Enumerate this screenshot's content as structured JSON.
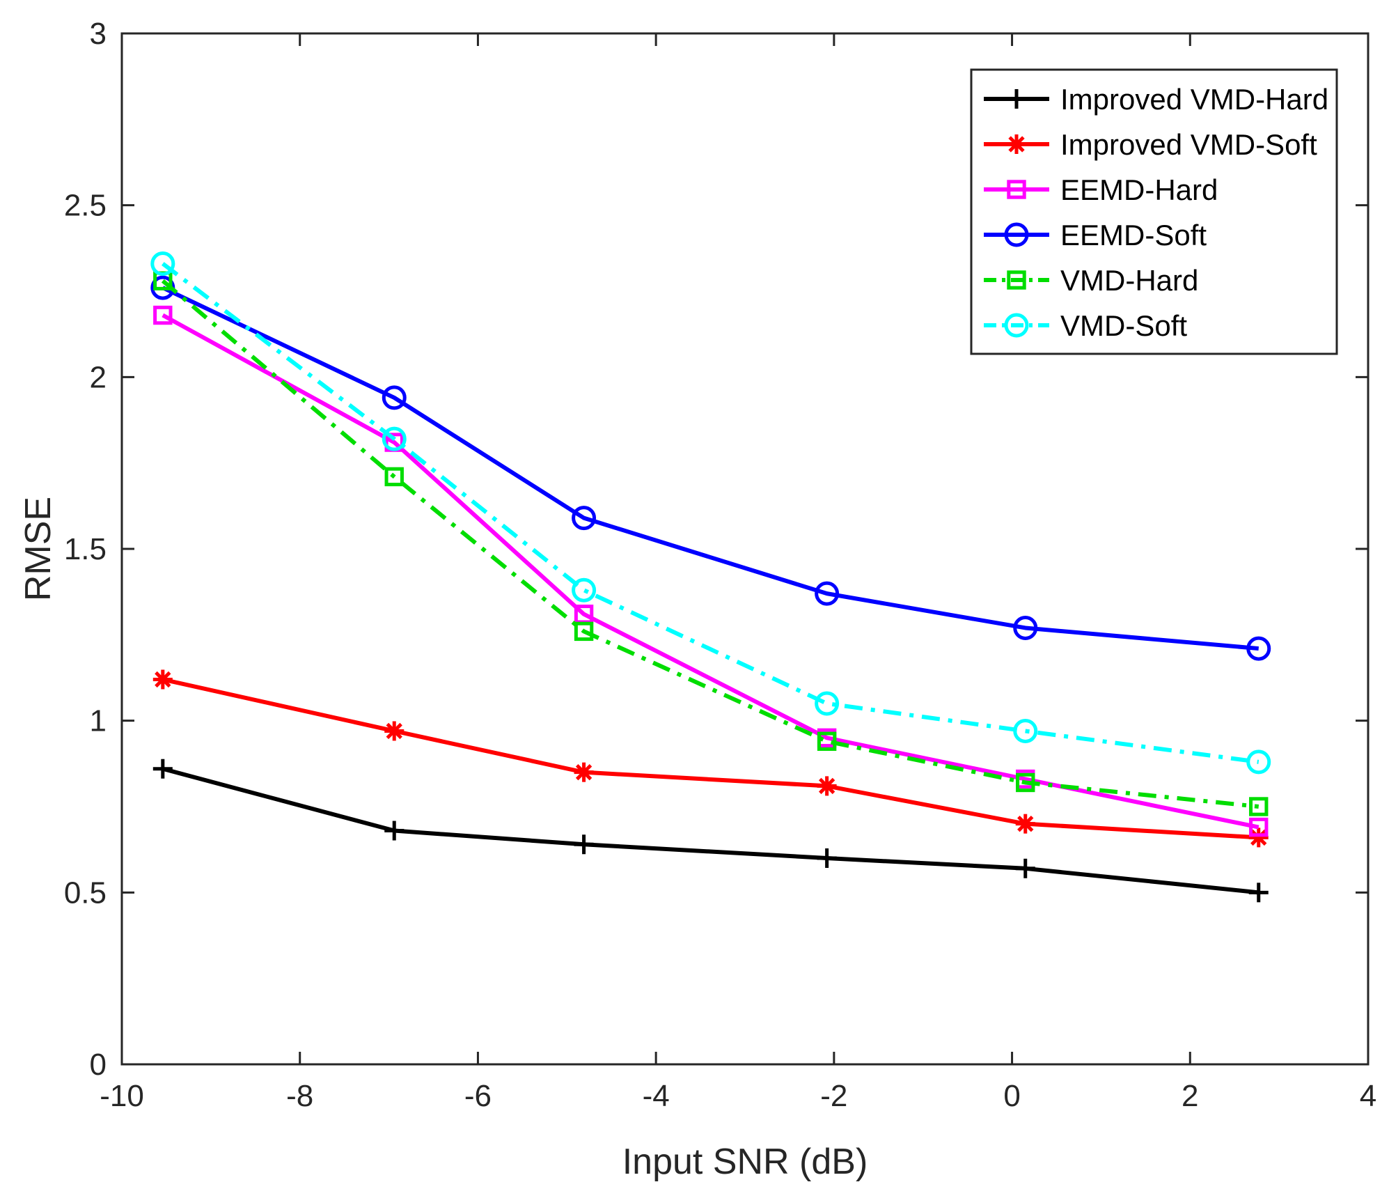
{
  "chart_data": {
    "type": "line",
    "title": "",
    "xlabel": "Input SNR (dB)",
    "ylabel": "RMSE",
    "xlim": [
      -10,
      4
    ],
    "ylim": [
      0,
      3
    ],
    "xticks": [
      -10,
      -8,
      -6,
      -4,
      -2,
      0,
      2,
      4
    ],
    "yticks": [
      0,
      0.5,
      1,
      1.5,
      2,
      2.5,
      3
    ],
    "xtick_labels": [
      "-10",
      "-8",
      "-6",
      "-4",
      "-2",
      "0",
      "2",
      "4"
    ],
    "ytick_labels": [
      "0",
      "0.5",
      "1",
      "1.5",
      "2",
      "2.5",
      "3"
    ],
    "grid": false,
    "legend_position": "top-right",
    "x": [
      -9.54,
      -6.94,
      -4.81,
      -2.08,
      0.15,
      2.77
    ],
    "series": [
      {
        "name": "Improved VMD-Hard",
        "color": "#000000",
        "dash": "solid",
        "marker": "plus",
        "values": [
          0.86,
          0.68,
          0.64,
          0.6,
          0.57,
          0.5
        ]
      },
      {
        "name": "Improved VMD-Soft",
        "color": "#ff0000",
        "dash": "solid",
        "marker": "asterisk",
        "values": [
          1.12,
          0.97,
          0.85,
          0.81,
          0.7,
          0.66
        ]
      },
      {
        "name": "EEMD-Hard",
        "color": "#ff00ff",
        "dash": "solid",
        "marker": "square",
        "values": [
          2.18,
          1.81,
          1.31,
          0.95,
          0.83,
          0.69
        ]
      },
      {
        "name": "EEMD-Soft",
        "color": "#0000ff",
        "dash": "solid",
        "marker": "circle",
        "values": [
          2.26,
          1.94,
          1.59,
          1.37,
          1.27,
          1.21
        ]
      },
      {
        "name": "VMD-Hard",
        "color": "#00dd00",
        "dash": "dashdot",
        "marker": "square",
        "values": [
          2.28,
          1.71,
          1.26,
          0.94,
          0.82,
          0.75
        ]
      },
      {
        "name": "VMD-Soft",
        "color": "#00ffff",
        "dash": "dashdot",
        "marker": "circle",
        "values": [
          2.33,
          1.82,
          1.38,
          1.05,
          0.97,
          0.88
        ]
      }
    ]
  }
}
